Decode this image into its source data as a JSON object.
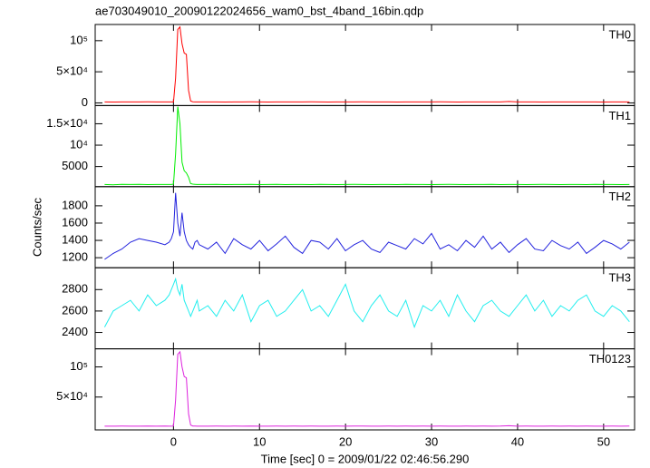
{
  "chart_data": [
    {
      "type": "line",
      "title": "ae703049010_20090122024656_wam0_bst_4band_16bin.qdp",
      "series": [
        {
          "name": "TH0",
          "color": "#ff0000",
          "values": [
            1500,
            1400,
            1600,
            1500,
            1500,
            1700,
            1500,
            1600,
            1500,
            1500,
            1600,
            40000,
            118000,
            122000,
            95000,
            80000,
            78000,
            20000,
            3000,
            1800,
            1600,
            1500,
            1500,
            1500,
            1600,
            1450,
            1550,
            1500,
            1700,
            1500,
            1450,
            1600,
            1500,
            1550,
            1500,
            1650,
            1500,
            1450,
            1600,
            1500,
            1550,
            1700,
            1500,
            1500,
            1600,
            1450,
            1550,
            1500,
            1600,
            1500,
            1650,
            1500,
            1450,
            1550,
            1500,
            1600,
            1500,
            1550,
            2200,
            1500,
            1600,
            1500,
            1450,
            1550,
            1500,
            1600,
            1500,
            1550,
            1500,
            1450,
            1600,
            1500,
            1550
          ]
        }
      ],
      "ylim": [
        -4300,
        126000
      ],
      "yticks": [
        0,
        {
          "value": 50000,
          "label": "5×10⁴"
        },
        {
          "value": 100000,
          "label": "10⁵"
        }
      ]
    },
    {
      "type": "line",
      "series": [
        {
          "name": "TH1",
          "color": "#00ee00",
          "values": [
            800,
            750,
            850,
            800,
            820,
            780,
            800,
            810,
            800,
            800,
            900,
            8000,
            19000,
            15000,
            6000,
            4000,
            3500,
            2500,
            1000,
            900,
            850,
            800,
            800,
            800,
            820,
            780,
            810,
            800,
            850,
            790,
            800,
            820,
            780,
            800,
            810,
            790,
            830,
            800,
            780,
            800,
            820,
            800,
            790,
            810,
            800,
            780,
            820,
            800,
            810,
            790,
            800,
            830,
            800,
            780,
            810,
            800,
            820,
            790,
            800,
            810,
            780,
            800,
            820,
            800,
            790,
            810,
            800,
            780,
            820,
            800,
            810,
            790,
            800
          ]
        }
      ],
      "ylim": [
        300,
        19250
      ],
      "yticks": [
        5000,
        {
          "value": 10000,
          "label": "10⁴"
        },
        {
          "value": 15000,
          "label": "1.5×10⁴"
        }
      ]
    },
    {
      "type": "line",
      "y_label": "Counts/sec",
      "series": [
        {
          "name": "TH2",
          "color": "#2222dd",
          "values": [
            1180,
            1250,
            1300,
            1380,
            1420,
            1400,
            1380,
            1350,
            1380,
            1420,
            1500,
            1950,
            1600,
            1450,
            1720,
            1500,
            1400,
            1350,
            1320,
            1300,
            1380,
            1400,
            1350,
            1300,
            1380,
            1250,
            1420,
            1350,
            1300,
            1400,
            1280,
            1360,
            1450,
            1320,
            1250,
            1400,
            1380,
            1300,
            1420,
            1280,
            1350,
            1400,
            1300,
            1260,
            1380,
            1340,
            1300,
            1420,
            1360,
            1480,
            1300,
            1350,
            1280,
            1400,
            1320,
            1450,
            1300,
            1380,
            1260,
            1350,
            1420,
            1300,
            1280,
            1400,
            1340,
            1300,
            1380,
            1250,
            1320,
            1400,
            1360,
            1300,
            1380
          ]
        }
      ],
      "ylim": [
        1084,
        2021
      ],
      "yticks": [
        1200,
        1400,
        1600,
        1800
      ]
    },
    {
      "type": "line",
      "series": [
        {
          "name": "TH3",
          "color": "#22eeee",
          "values": [
            2450,
            2600,
            2650,
            2700,
            2600,
            2750,
            2650,
            2700,
            2750,
            2800,
            2850,
            2900,
            2800,
            2750,
            2850,
            2700,
            2650,
            2600,
            2550,
            2600,
            2650,
            2700,
            2600,
            2650,
            2550,
            2700,
            2600,
            2750,
            2500,
            2650,
            2700,
            2550,
            2600,
            2700,
            2800,
            2600,
            2650,
            2550,
            2700,
            2850,
            2600,
            2500,
            2650,
            2750,
            2600,
            2550,
            2700,
            2450,
            2650,
            2600,
            2700,
            2550,
            2750,
            2600,
            2500,
            2650,
            2700,
            2600,
            2550,
            2650,
            2750,
            2600,
            2700,
            2550,
            2650,
            2600,
            2700,
            2750,
            2600,
            2550,
            2650,
            2600,
            2500
          ]
        }
      ],
      "ylim": [
        2247,
        3004
      ],
      "yticks": [
        2400,
        2600,
        2800
      ]
    },
    {
      "type": "line",
      "x_label": "Time [sec] 0 = 2009/01/22 02:46:56.290",
      "x": [
        -8,
        -7,
        -6,
        -5,
        -4,
        -3,
        -2,
        -1,
        -0.5,
        -0.25,
        0,
        0.25,
        0.5,
        0.75,
        1,
        1.25,
        1.5,
        1.75,
        2,
        2.25,
        2.5,
        2.75,
        3,
        4,
        5,
        6,
        7,
        8,
        9,
        10,
        11,
        12,
        13,
        14,
        15,
        16,
        17,
        18,
        19,
        20,
        21,
        22,
        23,
        24,
        25,
        26,
        27,
        28,
        29,
        30,
        31,
        32,
        33,
        34,
        35,
        36,
        37,
        38,
        39,
        40,
        41,
        42,
        43,
        44,
        45,
        46,
        47,
        48,
        49,
        50,
        51,
        52,
        53
      ],
      "series": [
        {
          "name": "TH0123",
          "color": "#dd22dd",
          "values": [
            1700,
            1600,
            1800,
            1700,
            1700,
            1900,
            1700,
            1800,
            1700,
            1700,
            1900,
            45000,
            121000,
            125000,
            100000,
            84000,
            82000,
            22000,
            3500,
            2000,
            1800,
            1700,
            1700,
            1700,
            1800,
            1650,
            1750,
            1700,
            1900,
            1700,
            1650,
            1800,
            1700,
            1750,
            1700,
            1850,
            1700,
            1650,
            1800,
            1700,
            1750,
            1900,
            1700,
            1700,
            1800,
            1650,
            1750,
            1700,
            1800,
            1700,
            1850,
            1700,
            1650,
            1750,
            1700,
            1800,
            1700,
            1750,
            2400,
            1700,
            1800,
            1700,
            1650,
            1750,
            1700,
            1800,
            1700,
            1750,
            1700,
            1650,
            1800,
            1700,
            1750
          ]
        }
      ],
      "xlim": [
        -9.1,
        53.6
      ],
      "xticks": [
        0,
        10,
        20,
        30,
        40,
        50
      ],
      "ylim": [
        -4500,
        130000
      ],
      "yticks": [
        {
          "value": 50000,
          "label": "5×10⁴"
        },
        {
          "value": 100000,
          "label": "10⁵"
        }
      ]
    }
  ]
}
